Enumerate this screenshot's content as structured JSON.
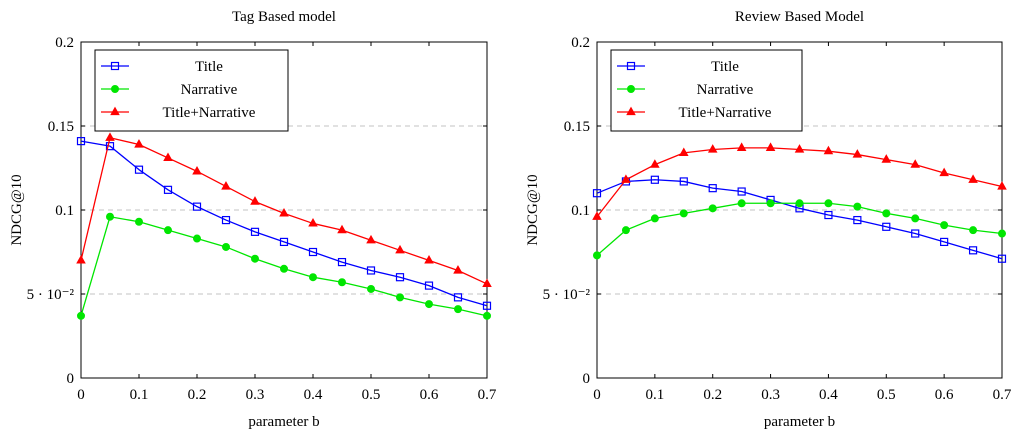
{
  "chart_data": [
    {
      "type": "line",
      "title": "Tag Based model",
      "xlabel": "parameter b",
      "ylabel": "NDCG@10",
      "xlim": [
        0,
        0.7
      ],
      "ylim": [
        0,
        0.2
      ],
      "xticks": [
        0,
        0.1,
        0.2,
        0.3,
        0.4,
        0.5,
        0.6,
        0.7
      ],
      "xtick_labels": [
        "0",
        "0.1",
        "0.2",
        "0.3",
        "0.4",
        "0.5",
        "0.6",
        "0.7"
      ],
      "yticks": [
        0,
        0.05,
        0.1,
        0.15,
        0.2
      ],
      "ytick_labels": [
        "0",
        "5 · 10⁻²",
        "0.1",
        "0.15",
        "0.2"
      ],
      "grid": true,
      "legend_position": "top-left",
      "x": [
        0,
        0.05,
        0.1,
        0.15,
        0.2,
        0.25,
        0.3,
        0.35,
        0.4,
        0.45,
        0.5,
        0.55,
        0.6,
        0.65,
        0.7
      ],
      "series": [
        {
          "name": "Title",
          "color": "#0000ff",
          "marker": "square",
          "values": [
            0.141,
            0.138,
            0.124,
            0.112,
            0.102,
            0.094,
            0.087,
            0.081,
            0.075,
            0.069,
            0.064,
            0.06,
            0.055,
            0.048,
            0.043
          ]
        },
        {
          "name": "Narrative",
          "color": "#00e600",
          "marker": "circle",
          "values": [
            0.037,
            0.096,
            0.093,
            0.088,
            0.083,
            0.078,
            0.071,
            0.065,
            0.06,
            0.057,
            0.053,
            0.048,
            0.044,
            0.041,
            0.037
          ]
        },
        {
          "name": "Title+Narrative",
          "color": "#ff0000",
          "marker": "triangle",
          "values": [
            0.07,
            0.143,
            0.139,
            0.131,
            0.123,
            0.114,
            0.105,
            0.098,
            0.092,
            0.088,
            0.082,
            0.076,
            0.07,
            0.064,
            0.056
          ]
        }
      ]
    },
    {
      "type": "line",
      "title": "Review Based Model",
      "xlabel": "parameter b",
      "ylabel": "NDCG@10",
      "xlim": [
        0,
        0.7
      ],
      "ylim": [
        0,
        0.2
      ],
      "xticks": [
        0,
        0.1,
        0.2,
        0.3,
        0.4,
        0.5,
        0.6,
        0.7
      ],
      "xtick_labels": [
        "0",
        "0.1",
        "0.2",
        "0.3",
        "0.4",
        "0.5",
        "0.6",
        "0.7"
      ],
      "yticks": [
        0,
        0.05,
        0.1,
        0.15,
        0.2
      ],
      "ytick_labels": [
        "0",
        "5 · 10⁻²",
        "0.1",
        "0.15",
        "0.2"
      ],
      "grid": true,
      "legend_position": "top-left",
      "x": [
        0,
        0.05,
        0.1,
        0.15,
        0.2,
        0.25,
        0.3,
        0.35,
        0.4,
        0.45,
        0.5,
        0.55,
        0.6,
        0.65,
        0.7
      ],
      "series": [
        {
          "name": "Title",
          "color": "#0000ff",
          "marker": "square",
          "values": [
            0.11,
            0.117,
            0.118,
            0.117,
            0.113,
            0.111,
            0.106,
            0.101,
            0.097,
            0.094,
            0.09,
            0.086,
            0.081,
            0.076,
            0.071
          ]
        },
        {
          "name": "Narrative",
          "color": "#00e600",
          "marker": "circle",
          "values": [
            0.073,
            0.088,
            0.095,
            0.098,
            0.101,
            0.104,
            0.104,
            0.104,
            0.104,
            0.102,
            0.098,
            0.095,
            0.091,
            0.088,
            0.086
          ]
        },
        {
          "name": "Title+Narrative",
          "color": "#ff0000",
          "marker": "triangle",
          "values": [
            0.096,
            0.118,
            0.127,
            0.134,
            0.136,
            0.137,
            0.137,
            0.136,
            0.135,
            0.133,
            0.13,
            0.127,
            0.122,
            0.118,
            0.114
          ]
        }
      ]
    }
  ]
}
